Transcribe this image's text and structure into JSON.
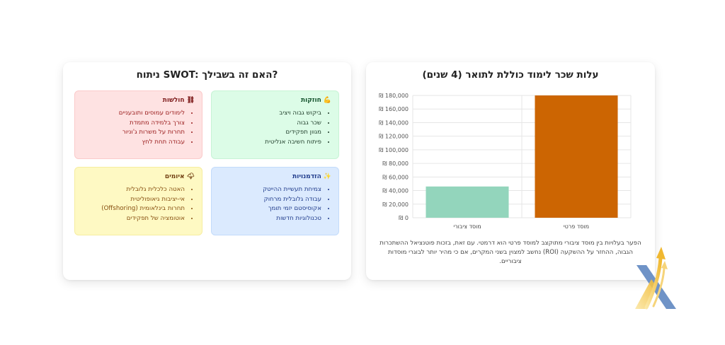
{
  "swot": {
    "title": "ניתוח SWOT: האם זה בשבילך?",
    "strengths": {
      "heading": "חוזקות",
      "icon": "flexed-biceps-icon",
      "items": [
        "ביקוש גבוה ויציב",
        "שכר גבוה",
        "מגוון תפקידים",
        "פיתוח חשיבה אנליטית"
      ]
    },
    "weaknesses": {
      "heading": "חולשות",
      "icon": "chain-link-icon",
      "items": [
        "לימודים עמוסים ותובעניים",
        "צורך בלמידה מתמדת",
        "תחרות על משרות ג'וניור",
        "עבודה תחת לחץ"
      ]
    },
    "opportunities": {
      "heading": "הזדמנויות",
      "icon": "sparkles-icon",
      "items": [
        "צמיחת תעשיית ההייטק",
        "עבודה גלובלית מרחוק",
        "אקוסיסטם יזמי תומך",
        "טכנולוגיות חדשות"
      ]
    },
    "threats": {
      "heading": "איומים",
      "icon": "storm-cloud-icon",
      "items": [
        "האטה כלכלית גלובלית",
        "אי-יציבות גיאופוליטית",
        "תחרות בינלאומית (Offshoring)",
        "אוטומציה של תפקידים"
      ]
    }
  },
  "chart_card": {
    "title": "עלות שכר לימוד כוללת לתואר (4 שנים)",
    "caption": "הפער בעלויות בין מוסד ציבורי מתוקצב למוסד פרטי הוא דרמטי. עם זאת, בזכות פוטנציאל ההשתכרות הגבוה, ההחזר על ההשקעה (ROI) נחשב למצוין בשני המקרים, אם כי מהיר יותר לבוגרי מוסדות ציבוריים."
  },
  "chart_data": {
    "type": "bar",
    "categories": [
      "מוסד ציבורי",
      "מוסד פרטי"
    ],
    "values": [
      46000,
      180000
    ],
    "colors": [
      "#93d5bc",
      "#cc6502"
    ],
    "ylim": [
      0,
      180000
    ],
    "yticks": [
      0,
      20000,
      40000,
      60000,
      80000,
      100000,
      120000,
      140000,
      160000,
      180000
    ],
    "ytick_labels": [
      "₪ 0",
      "₪ 20,000",
      "₪ 40,000",
      "₪ 60,000",
      "₪ 80,000",
      "₪ 100,000",
      "₪ 120,000",
      "₪ 140,000",
      "₪ 160,000",
      "₪ 180,000"
    ],
    "grid": true
  },
  "logo": {
    "icon": "x-arrows-logo-icon"
  }
}
